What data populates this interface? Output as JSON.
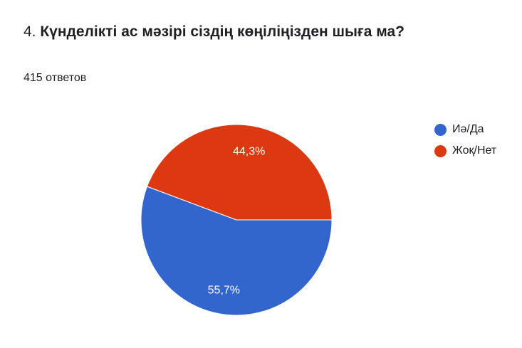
{
  "question": {
    "number": "4.",
    "text": "Күнделікті ас мәзірі сіздің көңіліңізден шыға ма?"
  },
  "responses_label": "415 ответов",
  "chart_data": {
    "type": "pie",
    "categories": [
      "Иә/Да",
      "Жоқ/Нет"
    ],
    "values": [
      55.7,
      44.3
    ],
    "value_labels": [
      "55,7%",
      "44,3%"
    ],
    "colors": [
      "#3366cc",
      "#dc3912"
    ],
    "legend_position": "right"
  }
}
